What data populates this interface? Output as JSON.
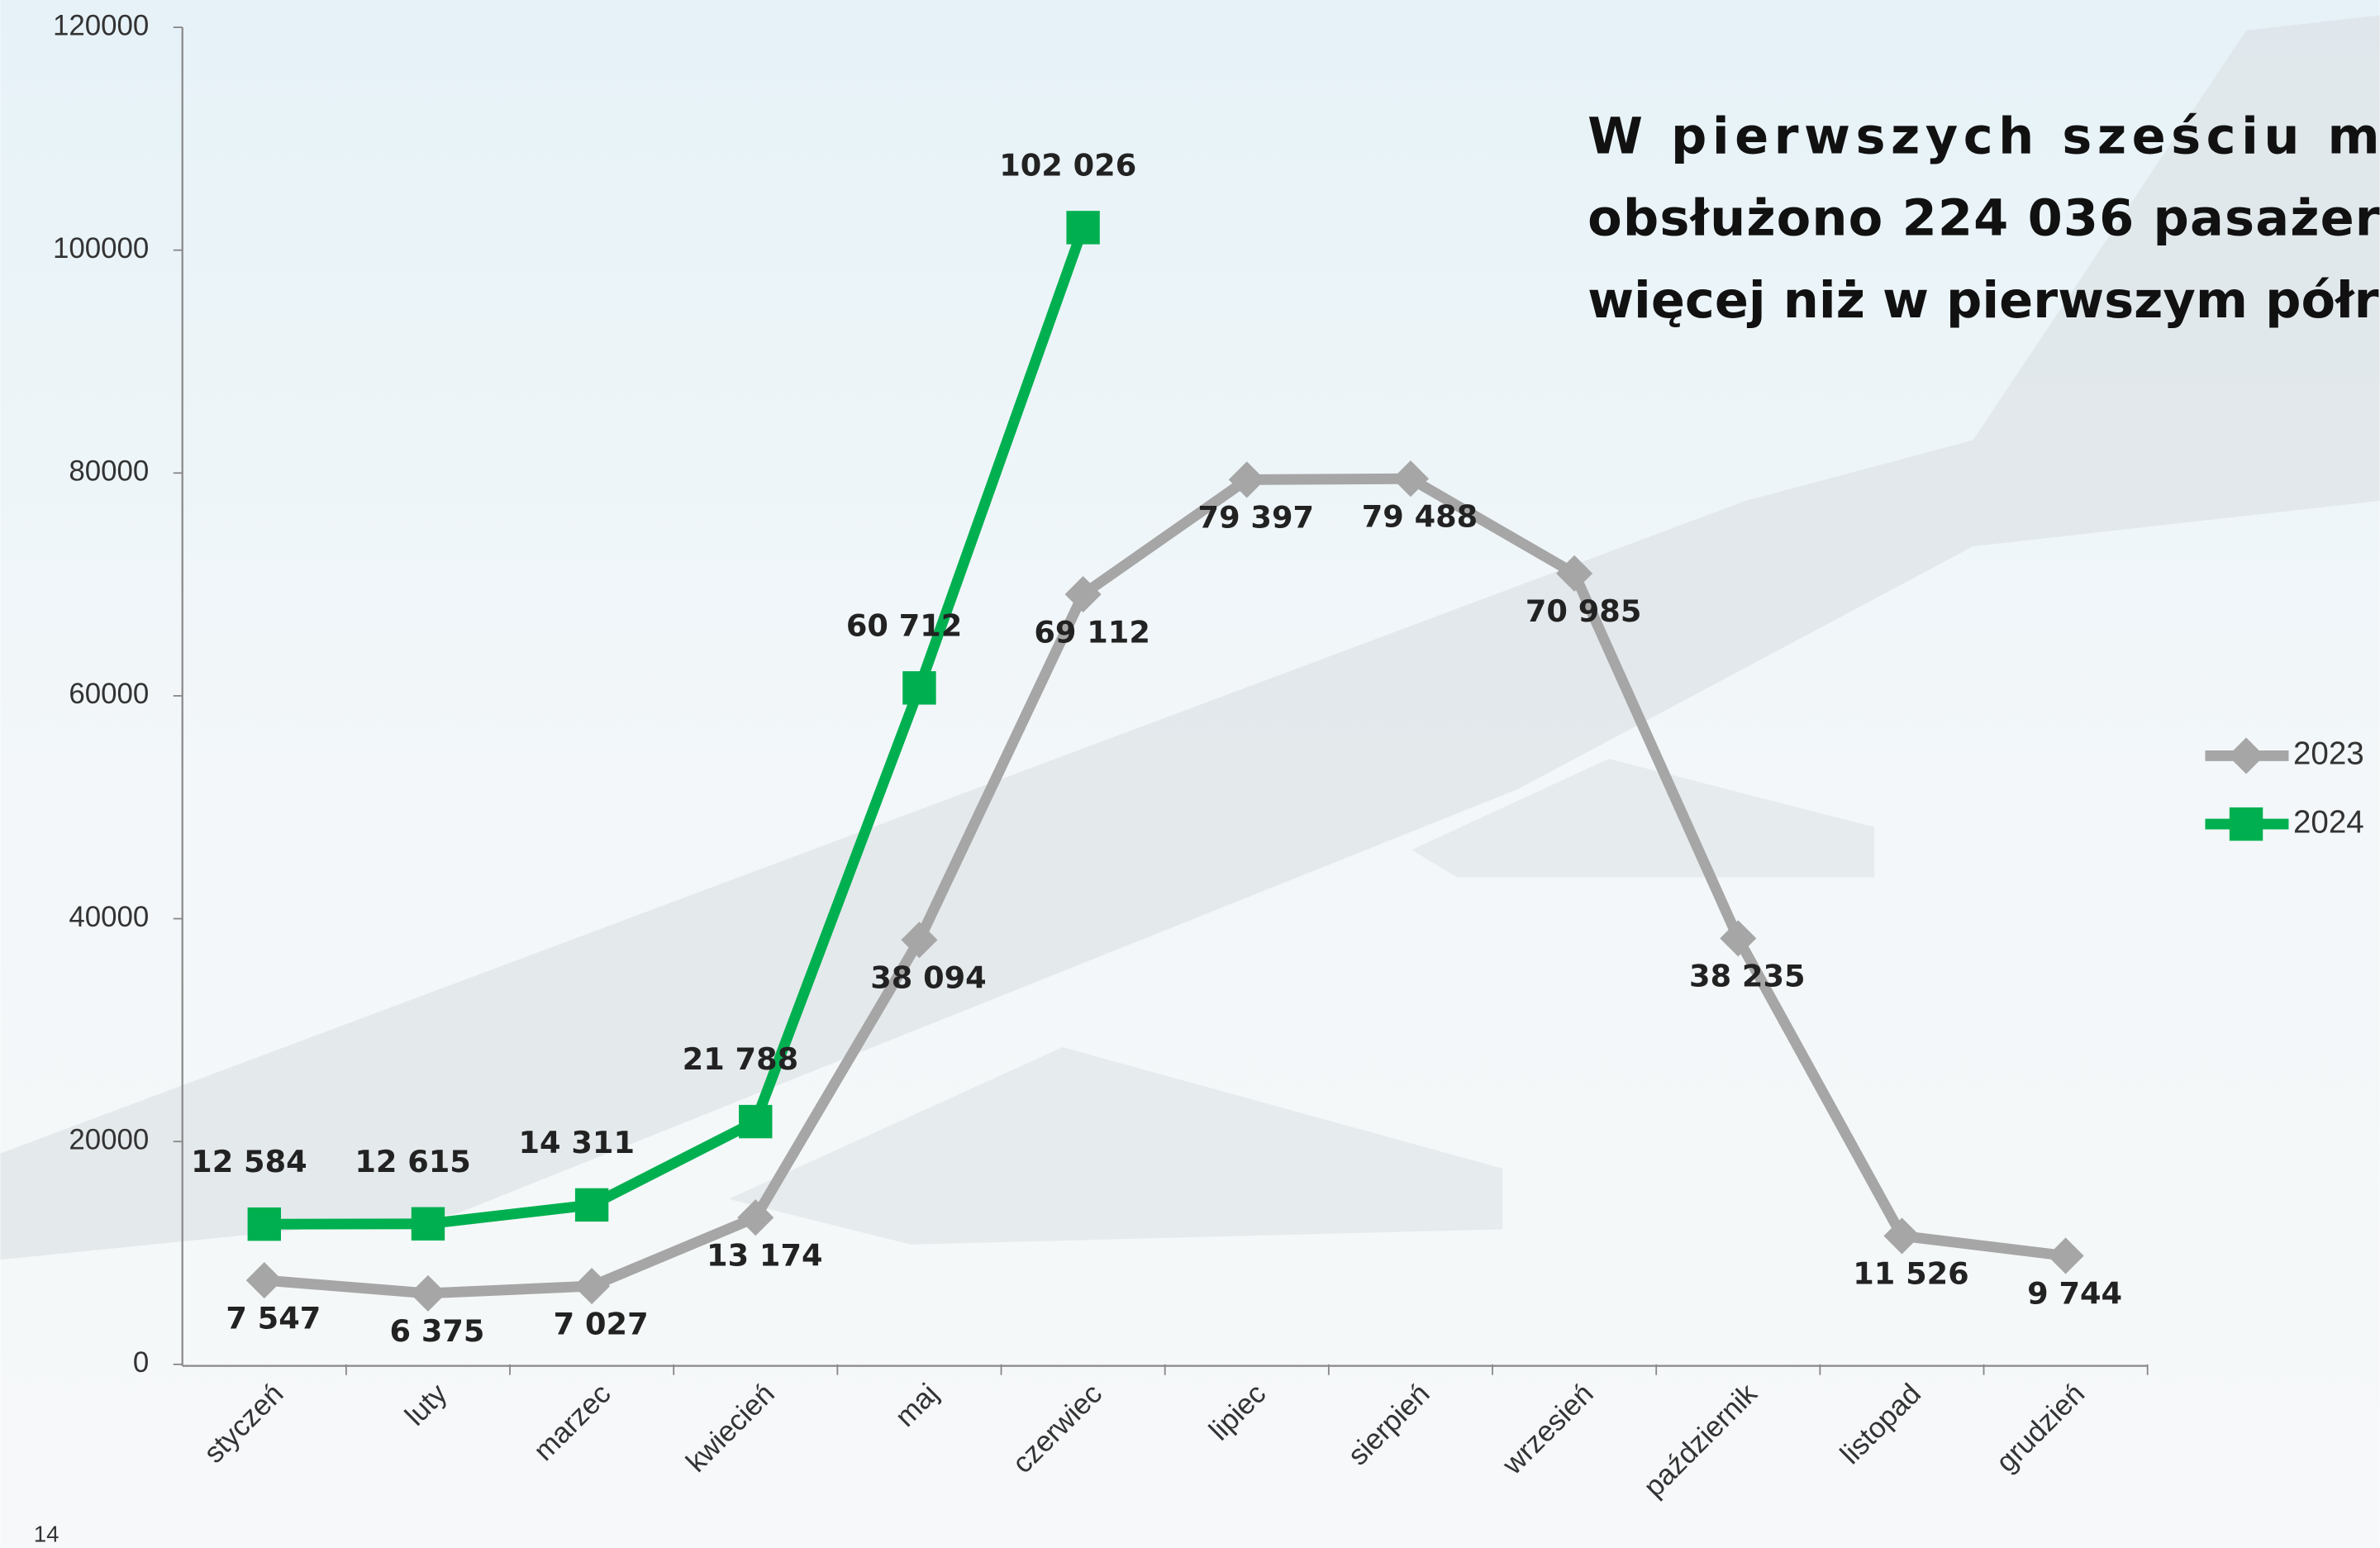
{
  "chart_data": {
    "type": "line",
    "text_lines": [
      "W pierwszych sześciu m",
      "obsłużono 224 036 pasażer",
      "więcej niż w pierwszym półro"
    ],
    "page_number": "14",
    "categories": [
      "styczeń",
      "luty",
      "marzec",
      "kwiecień",
      "maj",
      "czerwiec",
      "lipiec",
      "sierpień",
      "wrzesień",
      "październik",
      "listopad",
      "grudzień"
    ],
    "series": [
      {
        "name": "2023",
        "color": "#a6a6a6",
        "marker": "diamond",
        "values": [
          7547,
          6375,
          7027,
          13174,
          38094,
          69112,
          79397,
          79488,
          70985,
          38235,
          11526,
          9744
        ],
        "value_labels": [
          "7 547",
          "6 375",
          "7 027",
          "13 174",
          "38 094",
          "69 112",
          "79 397",
          "79 488",
          "70 985",
          "38 235",
          "11 526",
          "9 744"
        ]
      },
      {
        "name": "2024",
        "color": "#00b050",
        "marker": "square",
        "values": [
          12584,
          12615,
          14311,
          21788,
          60712,
          102026,
          null,
          null,
          null,
          null,
          null,
          null
        ],
        "value_labels": [
          "12 584",
          "12 615",
          "14 311",
          "21 788",
          "60 712",
          "102 026",
          null,
          null,
          null,
          null,
          null,
          null
        ]
      }
    ],
    "ylim": [
      0,
      120000
    ],
    "yticks": [
      0,
      20000,
      40000,
      60000,
      80000,
      100000,
      120000
    ],
    "grid": false,
    "legend": "right"
  }
}
